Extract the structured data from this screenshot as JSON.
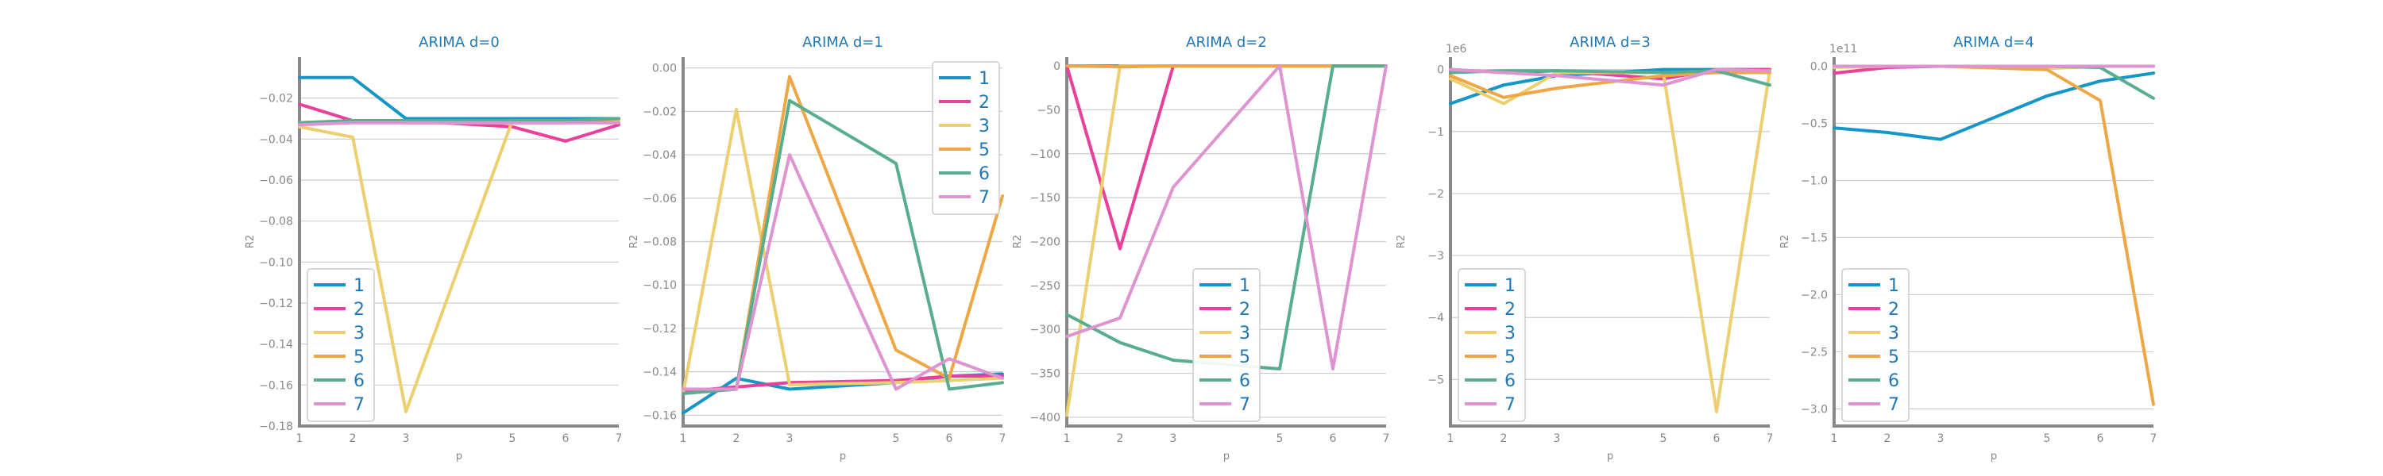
{
  "chart_data": [
    {
      "type": "line",
      "title": "ARIMA d=0",
      "xlabel": "p",
      "ylabel": "R2",
      "offset_text": "",
      "x": [
        1,
        2,
        3,
        5,
        6,
        7
      ],
      "xticks": [
        1,
        2,
        3,
        5,
        6,
        7
      ],
      "ylim": [
        -0.18,
        0.0
      ],
      "yticks": [
        -0.18,
        -0.16,
        -0.14,
        -0.12,
        -0.1,
        -0.08,
        -0.06,
        -0.04,
        -0.02
      ],
      "ytick_labels": [
        "−0.18",
        "−0.16",
        "−0.14",
        "−0.12",
        "−0.10",
        "−0.08",
        "−0.06",
        "−0.04",
        "−0.02"
      ],
      "legend": "lower-left",
      "grid": true,
      "series": [
        {
          "name": "1",
          "color": "#1696c8",
          "values": [
            -0.01,
            -0.01,
            -0.03,
            -0.03,
            -0.03,
            -0.03
          ]
        },
        {
          "name": "2",
          "color": "#e9409b",
          "values": [
            -0.023,
            -0.031,
            -0.031,
            -0.034,
            -0.041,
            -0.033
          ]
        },
        {
          "name": "3",
          "color": "#ecd06f",
          "values": [
            -0.034,
            -0.039,
            -0.173,
            -0.031,
            -0.031,
            -0.031
          ]
        },
        {
          "name": "5",
          "color": "#eea744",
          "values": [
            -0.032,
            -0.031,
            -0.032,
            -0.032,
            -0.032,
            -0.03
          ]
        },
        {
          "name": "6",
          "color": "#59ad8f",
          "values": [
            -0.032,
            -0.031,
            -0.031,
            -0.031,
            -0.031,
            -0.03
          ]
        },
        {
          "name": "7",
          "color": "#de94d0",
          "values": [
            -0.033,
            -0.032,
            -0.032,
            -0.032,
            -0.032,
            -0.032
          ]
        }
      ]
    },
    {
      "type": "line",
      "title": "ARIMA d=1",
      "xlabel": "p",
      "ylabel": "R2",
      "offset_text": "",
      "x": [
        1,
        2,
        3,
        5,
        6,
        7
      ],
      "xticks": [
        1,
        2,
        3,
        5,
        6,
        7
      ],
      "ylim": [
        -0.165,
        0.005
      ],
      "yticks": [
        -0.16,
        -0.14,
        -0.12,
        -0.1,
        -0.08,
        -0.06,
        -0.04,
        -0.02,
        0.0
      ],
      "ytick_labels": [
        "−0.16",
        "−0.14",
        "−0.12",
        "−0.10",
        "−0.08",
        "−0.06",
        "−0.04",
        "−0.02",
        "0.00"
      ],
      "legend": "upper-right",
      "grid": true,
      "series": [
        {
          "name": "1",
          "color": "#1696c8",
          "values": [
            -0.159,
            -0.143,
            -0.148,
            -0.145,
            -0.142,
            -0.141
          ]
        },
        {
          "name": "2",
          "color": "#e9409b",
          "values": [
            -0.149,
            -0.147,
            -0.145,
            -0.144,
            -0.142,
            -0.142
          ]
        },
        {
          "name": "3",
          "color": "#ecd06f",
          "values": [
            -0.15,
            -0.019,
            -0.146,
            -0.145,
            -0.144,
            -0.143
          ]
        },
        {
          "name": "5",
          "color": "#eea744",
          "values": [
            -0.15,
            -0.148,
            -0.004,
            -0.13,
            -0.143,
            -0.059
          ]
        },
        {
          "name": "6",
          "color": "#59ad8f",
          "values": [
            -0.15,
            -0.148,
            -0.015,
            -0.044,
            -0.148,
            -0.145
          ]
        },
        {
          "name": "7",
          "color": "#de94d0",
          "values": [
            -0.148,
            -0.148,
            -0.04,
            -0.148,
            -0.134,
            -0.143
          ]
        }
      ]
    },
    {
      "type": "line",
      "title": "ARIMA d=2",
      "xlabel": "p",
      "ylabel": "R2",
      "offset_text": "",
      "x": [
        1,
        2,
        3,
        5,
        6,
        7
      ],
      "xticks": [
        1,
        2,
        3,
        5,
        6,
        7
      ],
      "ylim": [
        -410,
        10
      ],
      "yticks": [
        -400,
        -350,
        -300,
        -250,
        -200,
        -150,
        -100,
        -50,
        0
      ],
      "ytick_labels": [
        "−400",
        "−350",
        "−300",
        "−250",
        "−200",
        "−150",
        "−100",
        "−50",
        "0"
      ],
      "legend": "lower-center",
      "grid": true,
      "series": [
        {
          "name": "1",
          "color": "#1696c8",
          "values": [
            0,
            0,
            0,
            0,
            0,
            0
          ]
        },
        {
          "name": "2",
          "color": "#e9409b",
          "values": [
            0,
            -208,
            0,
            0,
            0,
            0
          ]
        },
        {
          "name": "3",
          "color": "#ecd06f",
          "values": [
            -398,
            0,
            0,
            0,
            0,
            0
          ]
        },
        {
          "name": "5",
          "color": "#eea744",
          "values": [
            0,
            -1,
            0,
            0,
            0,
            0
          ]
        },
        {
          "name": "6",
          "color": "#59ad8f",
          "values": [
            -283,
            -315,
            -335,
            -345,
            0,
            0
          ]
        },
        {
          "name": "7",
          "color": "#de94d0",
          "values": [
            -308,
            -287,
            -138,
            0,
            -345,
            0
          ]
        }
      ]
    },
    {
      "type": "line",
      "title": "ARIMA d=3",
      "xlabel": "p",
      "ylabel": "R2",
      "offset_text": "1e6",
      "x": [
        1,
        2,
        3,
        5,
        6,
        7
      ],
      "xticks": [
        1,
        2,
        3,
        5,
        6,
        7
      ],
      "ylim": [
        -5.75,
        0.2
      ],
      "yticks": [
        -5,
        -4,
        -3,
        -2,
        -1,
        0
      ],
      "ytick_labels": [
        "−5",
        "−4",
        "−3",
        "−2",
        "−1",
        "0"
      ],
      "legend": "lower-left",
      "grid": true,
      "series": [
        {
          "name": "1",
          "color": "#1696c8",
          "values": [
            -0.55,
            -0.25,
            -0.1,
            0,
            0,
            0
          ]
        },
        {
          "name": "2",
          "color": "#e9409b",
          "values": [
            0,
            -0.05,
            -0.02,
            -0.15,
            0,
            0
          ]
        },
        {
          "name": "3",
          "color": "#ecd06f",
          "values": [
            -0.15,
            -0.55,
            -0.05,
            -0.05,
            -5.52,
            -0.02
          ]
        },
        {
          "name": "5",
          "color": "#eea744",
          "values": [
            -0.1,
            -0.45,
            -0.3,
            -0.1,
            -0.05,
            -0.05
          ]
        },
        {
          "name": "6",
          "color": "#59ad8f",
          "values": [
            -0.05,
            -0.02,
            -0.02,
            -0.05,
            -0.02,
            -0.25
          ]
        },
        {
          "name": "7",
          "color": "#de94d0",
          "values": [
            0,
            -0.05,
            -0.1,
            -0.25,
            0,
            -0.02
          ]
        }
      ]
    },
    {
      "type": "line",
      "title": "ARIMA d=4",
      "xlabel": "p",
      "ylabel": "R2",
      "offset_text": "1e11",
      "x": [
        1,
        2,
        3,
        5,
        6,
        7
      ],
      "xticks": [
        1,
        2,
        3,
        5,
        6,
        7
      ],
      "ylim": [
        -3.15,
        0.08
      ],
      "yticks": [
        -3.0,
        -2.5,
        -2.0,
        -1.5,
        -1.0,
        -0.5,
        0.0
      ],
      "ytick_labels": [
        "−3.0",
        "−2.5",
        "−2.0",
        "−1.5",
        "−1.0",
        "−0.5",
        "0.0"
      ],
      "legend": "lower-left",
      "grid": true,
      "series": [
        {
          "name": "1",
          "color": "#1696c8",
          "values": [
            -0.54,
            -0.58,
            -0.64,
            -0.26,
            -0.13,
            -0.06
          ]
        },
        {
          "name": "2",
          "color": "#e9409b",
          "values": [
            -0.06,
            -0.01,
            0,
            0,
            0,
            0
          ]
        },
        {
          "name": "3",
          "color": "#ecd06f",
          "values": [
            -0.01,
            0,
            0,
            -0.02,
            0,
            0
          ]
        },
        {
          "name": "5",
          "color": "#eea744",
          "values": [
            0,
            0,
            0,
            -0.03,
            -0.3,
            -2.96
          ]
        },
        {
          "name": "6",
          "color": "#59ad8f",
          "values": [
            0,
            0,
            0,
            0,
            -0.01,
            -0.28
          ]
        },
        {
          "name": "7",
          "color": "#de94d0",
          "values": [
            0,
            0,
            0,
            0,
            0,
            0
          ]
        }
      ]
    }
  ]
}
